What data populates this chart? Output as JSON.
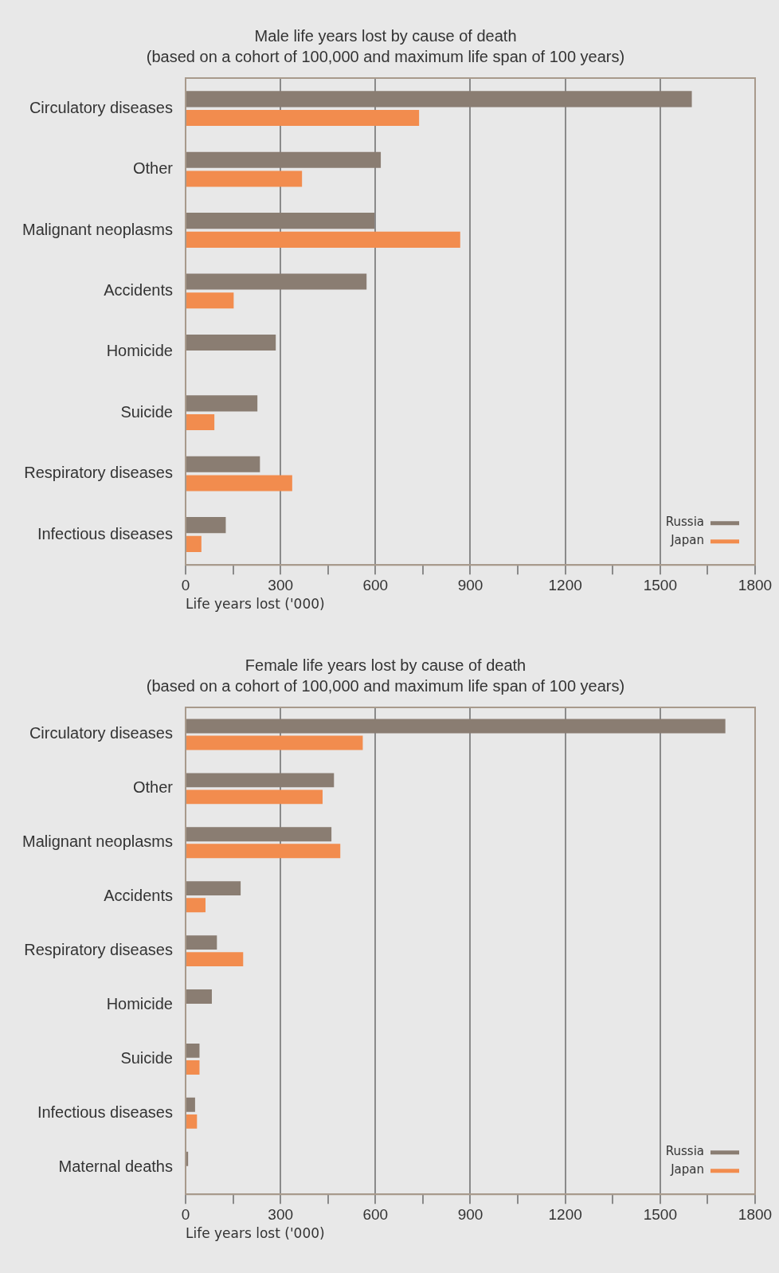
{
  "chart_data": [
    {
      "type": "bar",
      "orientation": "horizontal",
      "title": "Male life years lost by cause of death",
      "subtitle": "(based on a cohort of 100,000 and maximum life span of 100 years)",
      "xlabel": "Life years lost ('000)",
      "categories": [
        "Circulatory diseases",
        "Other",
        "Malignant neoplasms",
        "Accidents",
        "Homicide",
        "Suicide",
        "Respiratory diseases",
        "Infectious diseases"
      ],
      "series": [
        {
          "name": "Russia",
          "color": "#8a7d72",
          "values": [
            1600,
            617,
            597,
            572,
            285,
            227,
            235,
            127
          ]
        },
        {
          "name": "Japan",
          "color": "#f28c4e",
          "values": [
            738,
            368,
            868,
            152,
            null,
            91,
            337,
            50
          ]
        }
      ],
      "xlim": [
        0,
        1800
      ],
      "xticks": [
        0,
        {
          "value": 150,
          "label": null
        },
        300,
        {
          "value": 450,
          "label": null
        },
        600,
        {
          "value": 750,
          "label": null
        },
        900,
        {
          "value": 1050,
          "label": null
        },
        1200,
        {
          "value": 1350,
          "label": null
        },
        1500,
        {
          "value": 1650,
          "label": null
        },
        1800
      ],
      "grid": "x",
      "legend": "bottom right"
    },
    {
      "type": "bar",
      "orientation": "horizontal",
      "title": "Female life years lost by cause of death",
      "subtitle": "(based on a cohort of 100,000 and maximum life span of 100 years)",
      "xlabel": "Life years lost ('000)",
      "categories": [
        "Circulatory diseases",
        "Other",
        "Malignant neoplasms",
        "Accidents",
        "Respiratory diseases",
        "Homicide",
        "Suicide",
        "Infectious diseases",
        "Maternal deaths"
      ],
      "series": [
        {
          "name": "Russia",
          "color": "#8a7d72",
          "values": [
            1706,
            469,
            461,
            174,
            99,
            83,
            44,
            30,
            8
          ]
        },
        {
          "name": "Japan",
          "color": "#f28c4e",
          "values": [
            560,
            433,
            489,
            63,
            182,
            null,
            44,
            36,
            null
          ]
        }
      ],
      "xlim": [
        0,
        1800
      ],
      "xticks": [
        0,
        {
          "value": 150,
          "label": null
        },
        300,
        {
          "value": 450,
          "label": null
        },
        600,
        {
          "value": 750,
          "label": null
        },
        900,
        {
          "value": 1050,
          "label": null
        },
        1200,
        {
          "value": 1350,
          "label": null
        },
        1500,
        {
          "value": 1650,
          "label": null
        },
        1800
      ],
      "grid": "x",
      "legend": "bottom right"
    }
  ]
}
